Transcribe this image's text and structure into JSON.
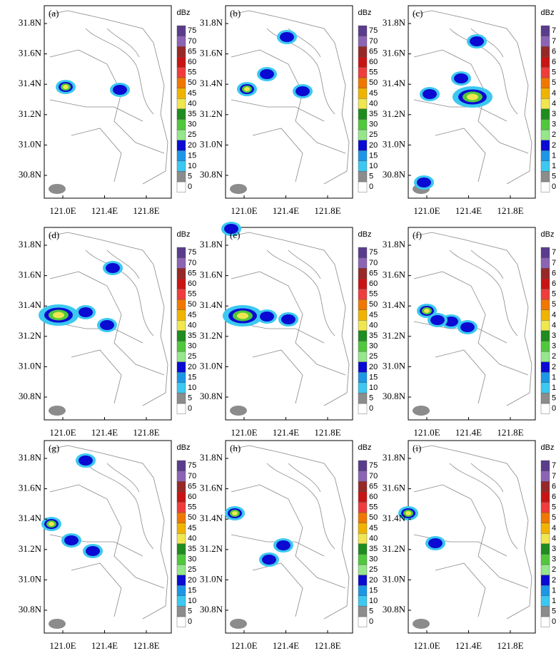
{
  "panels": [
    {
      "label": "(a)"
    },
    {
      "label": "(b)"
    },
    {
      "label": "(c)"
    },
    {
      "label": "(d)"
    },
    {
      "label": "(e)"
    },
    {
      "label": "(f)"
    },
    {
      "label": "(g)"
    },
    {
      "label": "(h)"
    },
    {
      "label": "(i)"
    }
  ],
  "lat_ticks": [
    "31.8N",
    "31.6N",
    "31.4N",
    "31.2N",
    "31.0N",
    "30.8N"
  ],
  "lon_ticks": [
    "121.0E",
    "121.4E",
    "121.8E"
  ],
  "colorbar": {
    "unit": "dBz",
    "levels": [
      0,
      5,
      10,
      15,
      20,
      25,
      30,
      35,
      40,
      45,
      50,
      55,
      60,
      65,
      70,
      75
    ],
    "colors": [
      "#ffffff",
      "#8c8c8c",
      "#3cc8f0",
      "#1e96e6",
      "#0a0ad2",
      "#96e68c",
      "#50c83c",
      "#1e8c1e",
      "#f0e650",
      "#f0b400",
      "#f07800",
      "#f03c3c",
      "#c81414",
      "#962828",
      "#8c64b4",
      "#5a3c8c"
    ]
  }
}
